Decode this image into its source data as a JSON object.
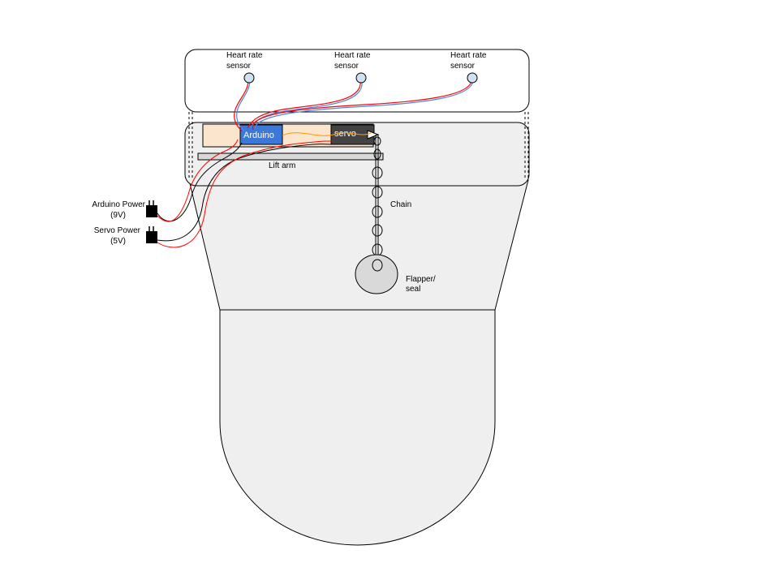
{
  "sensors": [
    {
      "line1": "Heart rate",
      "line2": "sensor"
    },
    {
      "line1": "Heart rate",
      "line2": "sensor"
    },
    {
      "line1": "Heart rate",
      "line2": "sensor"
    }
  ],
  "components": {
    "arduino": "Arduino",
    "servo": "servo",
    "lift_arm": "Lift arm",
    "chain": "Chain",
    "flapper_line1": "Flapper/",
    "flapper_line2": "seal"
  },
  "power": {
    "arduino_line1": "Arduino Power",
    "arduino_line2": "(9V)",
    "servo_line1": "Servo Power",
    "servo_line2": "(5V)"
  },
  "colors": {
    "tank_fill": "#efefef",
    "board_fill": "#fce5cd",
    "arduino_fill": "#3c78d8",
    "servo_fill": "#434343",
    "sensor_fill": "#cfe2f3",
    "flapper_fill": "#d9d9d9",
    "wire_red": "#ff0000",
    "wire_blue": "#4a86e8",
    "wire_orange": "#ff9900"
  }
}
